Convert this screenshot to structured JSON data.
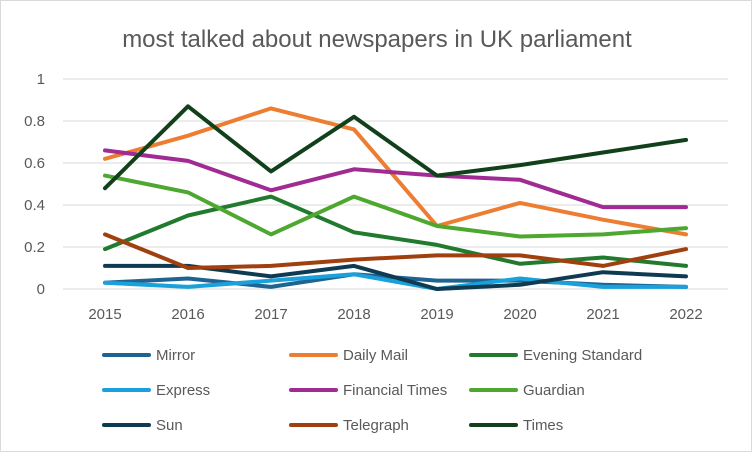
{
  "chart_data": {
    "type": "line",
    "title": "most talked about newspapers in UK parliament",
    "xlabel": "",
    "ylabel": "",
    "x": [
      "2015",
      "2016",
      "2017",
      "2018",
      "2019",
      "2020",
      "2021",
      "2022"
    ],
    "ylim": [
      0,
      1
    ],
    "yticks": [
      "0",
      "0.2",
      "0.4",
      "0.6",
      "0.8",
      "1"
    ],
    "grid": true,
    "legend": "bottom",
    "series": [
      {
        "name": "Mirror",
        "color": "#1F6391",
        "values": [
          0.03,
          0.05,
          0.01,
          0.07,
          0.04,
          0.04,
          0.02,
          0.01
        ]
      },
      {
        "name": "Daily Mail",
        "color": "#ED7D31",
        "values": [
          0.62,
          0.73,
          0.86,
          0.76,
          0.3,
          0.41,
          0.33,
          0.26
        ]
      },
      {
        "name": "Evening Standard",
        "color": "#217A2E",
        "values": [
          0.19,
          0.35,
          0.44,
          0.27,
          0.21,
          0.12,
          0.15,
          0.11
        ]
      },
      {
        "name": "Express",
        "color": "#1AA0DA",
        "values": [
          0.03,
          0.01,
          0.04,
          0.07,
          0.0,
          0.05,
          0.01,
          0.01
        ]
      },
      {
        "name": "Financial Times",
        "color": "#A02B93",
        "values": [
          0.66,
          0.61,
          0.47,
          0.57,
          0.54,
          0.52,
          0.39,
          0.39
        ]
      },
      {
        "name": "Guardian",
        "color": "#4EA72E",
        "values": [
          0.54,
          0.46,
          0.26,
          0.44,
          0.3,
          0.25,
          0.26,
          0.29
        ]
      },
      {
        "name": "Sun",
        "color": "#0E3A52",
        "values": [
          0.11,
          0.11,
          0.06,
          0.11,
          0.0,
          0.02,
          0.08,
          0.06
        ]
      },
      {
        "name": "Telegraph",
        "color": "#A0400F",
        "values": [
          0.26,
          0.1,
          0.11,
          0.14,
          0.16,
          0.16,
          0.11,
          0.19
        ]
      },
      {
        "name": "Times",
        "color": "#11401A",
        "values": [
          0.48,
          0.87,
          0.56,
          0.82,
          0.54,
          0.59,
          0.65,
          0.71
        ]
      }
    ]
  }
}
